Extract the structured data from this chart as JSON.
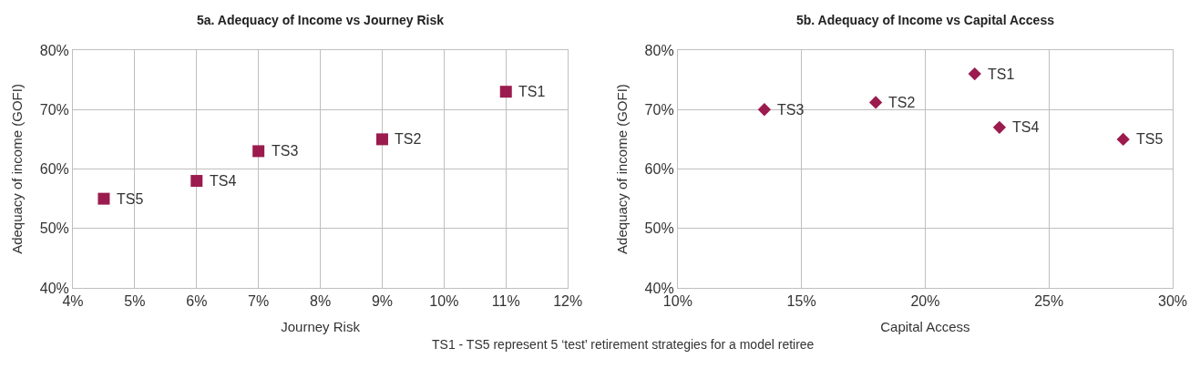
{
  "chart_data": [
    {
      "type": "scatter",
      "title": "5a. Adequacy of Income vs Journey Risk",
      "xlabel": "Journey Risk",
      "ylabel": "Adequacy of income (GOFI)",
      "marker": "square",
      "grid": true,
      "series": [
        {
          "color": "#9b1b4e",
          "x": [
            11,
            9,
            7,
            6,
            4.5
          ],
          "values": [
            73,
            65,
            63,
            58,
            55
          ]
        }
      ],
      "annotations": [
        {
          "text": "TS1",
          "x": 11,
          "y": 73
        },
        {
          "text": "TS2",
          "x": 9,
          "y": 65
        },
        {
          "text": "TS3",
          "x": 7,
          "y": 63
        },
        {
          "text": "TS4",
          "x": 6,
          "y": 58
        },
        {
          "text": "TS5",
          "x": 4.5,
          "y": 55
        }
      ],
      "xlim": [
        4,
        12
      ],
      "xticks": [
        {
          "value": 4,
          "label": "4%"
        },
        {
          "value": 5,
          "label": "5%"
        },
        {
          "value": 6,
          "label": "6%"
        },
        {
          "value": 7,
          "label": "7%"
        },
        {
          "value": 8,
          "label": "8%"
        },
        {
          "value": 9,
          "label": "9%"
        },
        {
          "value": 10,
          "label": "10%"
        },
        {
          "value": 11,
          "label": "11%"
        },
        {
          "value": 12,
          "label": "12%"
        }
      ],
      "ylim": [
        40,
        80
      ],
      "yticks": [
        {
          "value": 40,
          "label": "40%"
        },
        {
          "value": 50,
          "label": "50%"
        },
        {
          "value": 60,
          "label": "60%"
        },
        {
          "value": 70,
          "label": "70%"
        },
        {
          "value": 80,
          "label": "80%"
        }
      ]
    },
    {
      "type": "scatter",
      "title": "5b. Adequacy of Income vs Capital Access",
      "xlabel": "Capital Access",
      "ylabel": "Adequacy of income (GOFI)",
      "marker": "diamond",
      "grid": true,
      "series": [
        {
          "color": "#9b1b4e",
          "x": [
            22,
            18,
            13.5,
            23,
            28
          ],
          "values": [
            76,
            71.2,
            70,
            67,
            65
          ]
        }
      ],
      "annotations": [
        {
          "text": "TS1",
          "x": 22,
          "y": 76
        },
        {
          "text": "TS2",
          "x": 18,
          "y": 71.2
        },
        {
          "text": "TS3",
          "x": 13.5,
          "y": 70
        },
        {
          "text": "TS4",
          "x": 23,
          "y": 67
        },
        {
          "text": "TS5",
          "x": 28,
          "y": 65
        },
        "TS1 - TS5 represent 5 ‘test’ retirement strategies for a model retiree"
      ],
      "xlim": [
        10,
        30
      ],
      "xticks": [
        {
          "value": 10,
          "label": "10%"
        },
        {
          "value": 15,
          "label": "15%"
        },
        {
          "value": 20,
          "label": "20%"
        },
        {
          "value": 25,
          "label": "25%"
        },
        {
          "value": 30,
          "label": "30%"
        }
      ],
      "ylim": [
        40,
        80
      ],
      "yticks": [
        {
          "value": 40,
          "label": "40%"
        },
        {
          "value": 50,
          "label": "50%"
        },
        {
          "value": 60,
          "label": "60%"
        },
        {
          "value": 70,
          "label": "70%"
        },
        {
          "value": 80,
          "label": "80%"
        }
      ]
    }
  ]
}
